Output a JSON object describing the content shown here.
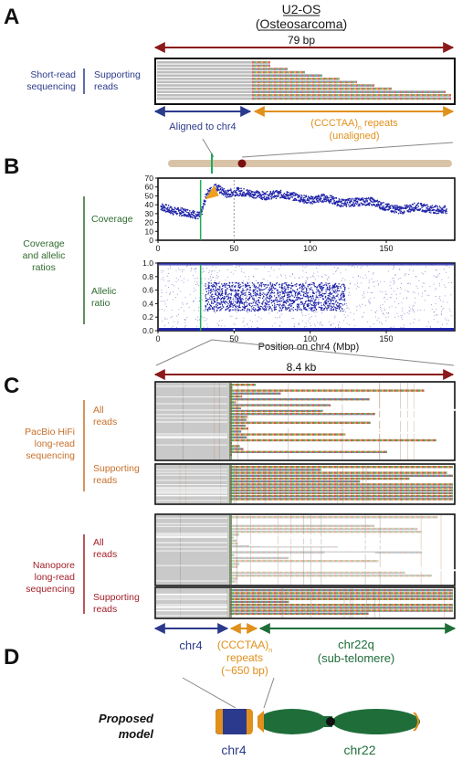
{
  "panels": {
    "A": {
      "letter": "A",
      "cell_line": "U2-OS",
      "tumor_type": "(Osteosarcoma)",
      "span_label": "79 bp",
      "method_line1": "Short-read",
      "method_line2": "sequencing",
      "track_line1": "Supporting",
      "track_line2": "reads",
      "aligned_label": "Aligned to chr4",
      "repeat_line1": "(CCCTAA)",
      "repeat_subscript": "n",
      "repeat_line1_suffix": " repeats",
      "repeat_line2": "(unaligned)"
    },
    "B": {
      "letter": "B",
      "group_line1": "Coverage",
      "group_line2": "and allelic",
      "group_line3": "ratios",
      "coverage_label": "Coverage",
      "allelic_line1": "Allelic",
      "allelic_line2": "ratio",
      "xlabel": "Position on chr4 (Mbp)"
    },
    "C": {
      "letter": "C",
      "span_label": "8.4 kb",
      "pacbio_line1": "PacBio HiFi",
      "pacbio_line2": "long-read",
      "pacbio_line3": "sequencing",
      "nanopore_line1": "Nanopore",
      "nanopore_line2": "long-read",
      "nanopore_line3": "sequencing",
      "all_line1": "All",
      "all_line2": "reads",
      "supp_line1": "Supporting",
      "supp_line2": "reads",
      "seg_chr4": "chr4",
      "seg_repeat_line1": "(CCCTAA)",
      "seg_repeat_sub": "n",
      "seg_repeat_line2": "repeats",
      "seg_repeat_line3": "(~650 bp)",
      "seg_chr22_line1": "chr22q",
      "seg_chr22_line2": "(sub-telomere)"
    },
    "D": {
      "letter": "D",
      "model_line1": "Proposed",
      "model_line2": "model",
      "chr4_label": "chr4",
      "chr22_label": "chr22"
    }
  },
  "colors": {
    "maroon": "#8b1a1a",
    "navy": "#2b3a8c",
    "orange": "#e0901c",
    "green": "#1f6e3a",
    "pacbio": "#c8702a",
    "nanopore": "#a3202a",
    "plot_blue": "#1e22a8"
  },
  "chart_data": [
    {
      "type": "scatter",
      "title": "Coverage",
      "xlabel": "",
      "ylabel": "",
      "xlim": [
        0,
        195
      ],
      "ylim": [
        0,
        70
      ],
      "xticks": [
        0,
        50,
        100,
        150
      ],
      "yticks": [
        0,
        10,
        20,
        30,
        40,
        50,
        60,
        70
      ],
      "series": [
        {
          "x": [
            2,
            10,
            20,
            28,
            32,
            38,
            45,
            52,
            60,
            70,
            80,
            90,
            100,
            110,
            120,
            130,
            140,
            150,
            160,
            170,
            180,
            190
          ],
          "values": [
            38,
            33,
            31,
            27,
            52,
            60,
            52,
            55,
            53,
            50,
            52,
            49,
            45,
            48,
            42,
            43,
            44,
            37,
            34,
            38,
            35,
            34
          ]
        }
      ]
    },
    {
      "type": "scatter",
      "title": "Allelic ratio",
      "xlabel": "Position on chr4 (Mbp)",
      "ylabel": "",
      "xlim": [
        0,
        195
      ],
      "ylim": [
        0,
        1.0
      ],
      "xticks": [
        0,
        50,
        100,
        150
      ],
      "yticks": [
        0.0,
        0.2,
        0.4,
        0.6,
        0.8,
        1.0
      ],
      "series": [
        {
          "x": [
            10,
            30,
            60,
            80,
            100,
            120,
            150,
            180
          ],
          "values": [
            0.5,
            0.5,
            0.55,
            0.5,
            0.5,
            0.55,
            0.5,
            0.5
          ]
        }
      ]
    }
  ]
}
